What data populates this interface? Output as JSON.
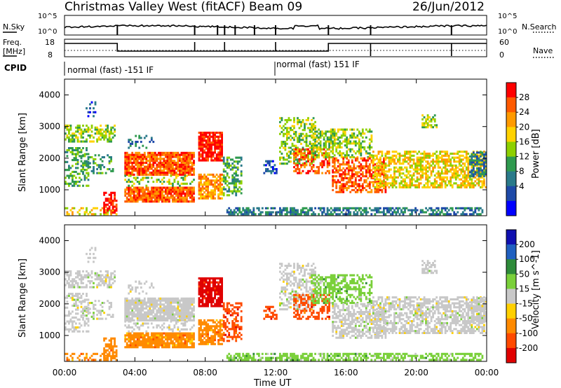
{
  "header": {
    "title": "Christmas Valley West (fitACF)",
    "beam": "Beam 09",
    "date": "26/Jun/2012"
  },
  "strip": {
    "nsky_label": "N.Sky",
    "nsky_ticks": [
      "10^5",
      "10^0"
    ],
    "nsearch_label": "N.Search",
    "nsearch_ticks": [
      "10^5",
      "10^0"
    ],
    "freq_label": "Freq.",
    "freq_unit": "[MHz]",
    "freq_ticks": [
      "18",
      "8"
    ],
    "nave_label": "Nave",
    "nave_ticks": [
      "60",
      "0"
    ],
    "cpid_label": "CPID",
    "cpid_segments": [
      "normal (fast) -151 IF",
      "normal (fast) 151 IF"
    ]
  },
  "chart_data": [
    {
      "type": "heatmap",
      "name": "power",
      "ylabel": "Slant Range [km]",
      "xlabel": "",
      "colorbar_label": "Power [dB]",
      "colorbar_ticks": [
        "28",
        "24",
        "20",
        "16",
        "12",
        "8",
        "4"
      ],
      "colorbar_colors": [
        "#ff0000",
        "#ff5a00",
        "#ff9a00",
        "#ffd200",
        "#8ed000",
        "#2f9a4f",
        "#2a7a8a",
        "#1e4aa8",
        "#0000ff"
      ],
      "yticks": [
        1000,
        2000,
        3000,
        4000
      ],
      "ylim": [
        180,
        4500
      ],
      "xlim": [
        0,
        24
      ],
      "x_unit": "hours UT"
    },
    {
      "type": "heatmap",
      "name": "velocity",
      "ylabel": "Slant Range [km]",
      "xlabel": "Time UT",
      "colorbar_label": "Velocity [m s^-1]",
      "colorbar_ticks": [
        "200",
        "100",
        "50",
        "15",
        "-15",
        "-50",
        "-100",
        "-200"
      ],
      "colorbar_colors": [
        "#1010b0",
        "#2060c0",
        "#2e8b3a",
        "#7ad03a",
        "#c8c8c8",
        "#ffd000",
        "#ff8a00",
        "#ff4a00",
        "#e00000"
      ],
      "yticks": [
        1000,
        2000,
        3000,
        4000
      ],
      "ylim": [
        180,
        4500
      ],
      "xlim": [
        0,
        24
      ],
      "xticks": [
        "00:00",
        "04:00",
        "08:00",
        "12:00",
        "16:00",
        "20:00",
        "00:00"
      ]
    }
  ]
}
